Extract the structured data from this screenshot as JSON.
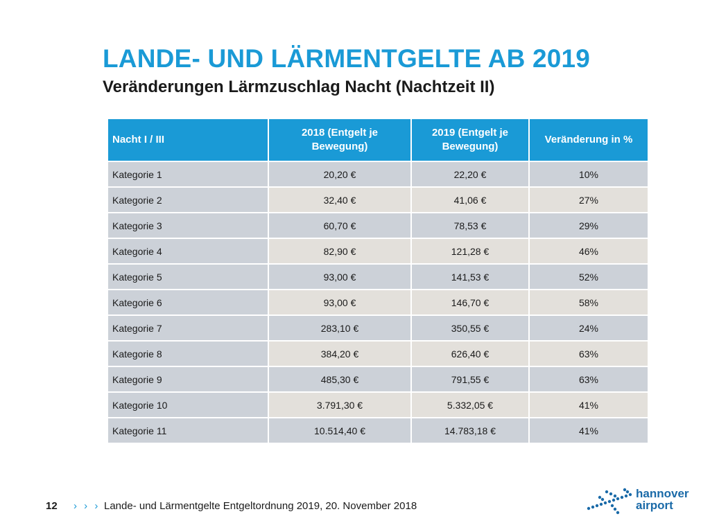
{
  "header": {
    "title": "LANDE- UND LÄRMENTGELTE AB 2019",
    "subtitle": "Veränderungen Lärmzuschlag Nacht (Nachtzeit II)"
  },
  "table": {
    "columns": [
      "Nacht I / III",
      "2018 (Entgelt je Bewegung)",
      "2019 (Entgelt je Bewegung)",
      "Veränderung in %"
    ],
    "rows": [
      [
        "Kategorie 1",
        "20,20 €",
        "22,20 €",
        "10%"
      ],
      [
        "Kategorie 2",
        "32,40 €",
        "41,06 €",
        "27%"
      ],
      [
        "Kategorie 3",
        "60,70 €",
        "78,53 €",
        "29%"
      ],
      [
        "Kategorie 4",
        "82,90 €",
        "121,28 €",
        "46%"
      ],
      [
        "Kategorie 5",
        "93,00 €",
        "141,53 €",
        "52%"
      ],
      [
        "Kategorie 6",
        "93,00 €",
        "146,70 €",
        "58%"
      ],
      [
        "Kategorie 7",
        "283,10 €",
        "350,55 €",
        "24%"
      ],
      [
        "Kategorie 8",
        "384,20 €",
        "626,40 €",
        "63%"
      ],
      [
        "Kategorie 9",
        "485,30 €",
        "791,55 €",
        "63%"
      ],
      [
        "Kategorie 10",
        "3.791,30 €",
        "5.332,05 €",
        "41%"
      ],
      [
        "Kategorie 11",
        "10.514,40 €",
        "14.783,18 €",
        "41%"
      ]
    ]
  },
  "footer": {
    "page_number": "12",
    "chevrons": "› › ›",
    "text": "Lande- und Lärmentgelte Entgeltordnung 2019, 20. November 2018"
  },
  "logo": {
    "word1": "hannover",
    "word2": "airport",
    "icon": "airplane-dots-icon"
  },
  "colors": {
    "accent": "#1a9ad6",
    "logo": "#1a6aa8",
    "cell_grey": "#ccd1d8",
    "cell_beige": "#e3e0db"
  }
}
